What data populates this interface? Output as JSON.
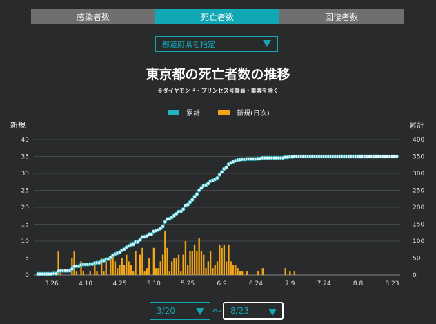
{
  "tabs": [
    {
      "label": "感染者数",
      "active": false
    },
    {
      "label": "死亡者数",
      "active": true
    },
    {
      "label": "回復者数",
      "active": false
    }
  ],
  "prefecture_select": {
    "label": "都道府県を指定"
  },
  "title": "東京都の死亡者数の推移",
  "subtitle": "※ダイヤモンド・プリンセス号乗員・乗客を除く",
  "legend": {
    "cumulative": "累計",
    "daily": "新規(日次)"
  },
  "axis": {
    "left_title": "新規",
    "right_title": "累計"
  },
  "date_range": {
    "start": "3/20",
    "separator": "〜",
    "end": "8/23"
  },
  "colors": {
    "cumulative": "#22b3c4",
    "daily": "#f3a616",
    "accent": "#14a5b3"
  },
  "chart_data": {
    "type": "bar+line",
    "x_tick_labels": [
      "3.26",
      "4.10",
      "4.25",
      "5.10",
      "5.25",
      "6.9",
      "6.24",
      "7.9",
      "7.24",
      "8.8",
      "8.23"
    ],
    "y_left_ticks": [
      0,
      5,
      10,
      15,
      20,
      25,
      30,
      35,
      40
    ],
    "y_right_ticks": [
      0,
      50,
      100,
      150,
      200,
      250,
      300,
      350,
      400
    ],
    "ylim_left": [
      0,
      40
    ],
    "ylim_right": [
      0,
      400
    ],
    "start_date": "3/20",
    "end_date": "8/23",
    "series": [
      {
        "name": "新規(日次)",
        "axis": "left",
        "type": "bar",
        "values": [
          0,
          0,
          0,
          0,
          0,
          0,
          0,
          1,
          0,
          7,
          1,
          0,
          0,
          0,
          0,
          5,
          7,
          1,
          0,
          4,
          1,
          0,
          0,
          1,
          0,
          3,
          1,
          0,
          5,
          1,
          4,
          0,
          5,
          6,
          4,
          2,
          3,
          5,
          3,
          6,
          4,
          3,
          1,
          7,
          0,
          6,
          8,
          1,
          2,
          5,
          0,
          8,
          2,
          2,
          4,
          6,
          13,
          8,
          1,
          4,
          5,
          5,
          6,
          1,
          6,
          10,
          3,
          7,
          7,
          9,
          7,
          11,
          7,
          6,
          2,
          4,
          7,
          2,
          3,
          4,
          9,
          8,
          9,
          4,
          9,
          4,
          3,
          3,
          2,
          1,
          1,
          0,
          1,
          0,
          0,
          0,
          0,
          1,
          0,
          2,
          0,
          0,
          0,
          0,
          0,
          0,
          0,
          0,
          0,
          2,
          0,
          1,
          0,
          1,
          0,
          0,
          0,
          0,
          0,
          0,
          0,
          0,
          0,
          0,
          0,
          0,
          0,
          0,
          0,
          0,
          0,
          0,
          0,
          0,
          0,
          0,
          0,
          0,
          0,
          0,
          0,
          0,
          0,
          0,
          0,
          0,
          0,
          0,
          0,
          0,
          0,
          0,
          0,
          0,
          0,
          0,
          0,
          0,
          0
        ]
      },
      {
        "name": "累計",
        "axis": "right",
        "type": "line",
        "values": []
      }
    ]
  }
}
